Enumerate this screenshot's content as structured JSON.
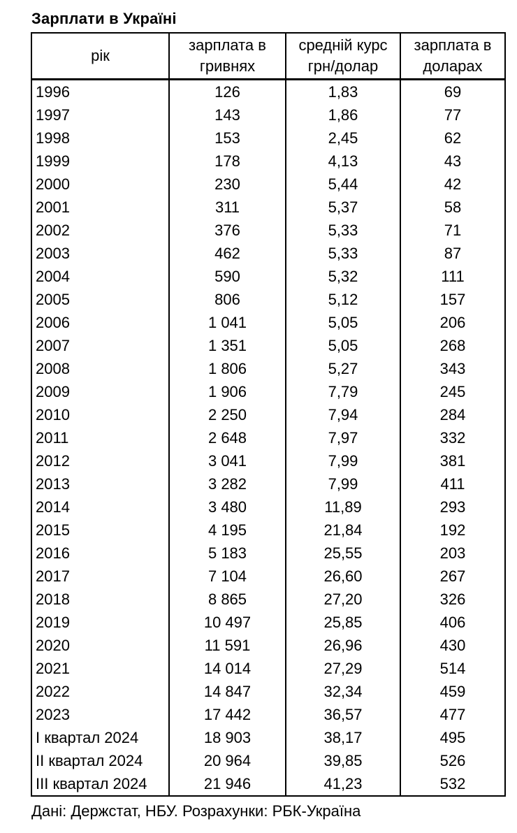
{
  "page": {
    "title": "Зарплати в Україні",
    "source_note": "Дані: Держстат, НБУ. Розрахунки: РБК-Україна"
  },
  "chart_data": {
    "type": "table",
    "title": "Зарплати в Україні",
    "columns": [
      "рік",
      "зарплата в гривнях",
      "средній курс грн/долар",
      "зарплата в доларах"
    ],
    "rows": [
      [
        "1996",
        "126",
        "1,83",
        "69"
      ],
      [
        "1997",
        "143",
        "1,86",
        "77"
      ],
      [
        "1998",
        "153",
        "2,45",
        "62"
      ],
      [
        "1999",
        "178",
        "4,13",
        "43"
      ],
      [
        "2000",
        "230",
        "5,44",
        "42"
      ],
      [
        "2001",
        "311",
        "5,37",
        "58"
      ],
      [
        "2002",
        "376",
        "5,33",
        "71"
      ],
      [
        "2003",
        "462",
        "5,33",
        "87"
      ],
      [
        "2004",
        "590",
        "5,32",
        "111"
      ],
      [
        "2005",
        "806",
        "5,12",
        "157"
      ],
      [
        "2006",
        "1 041",
        "5,05",
        "206"
      ],
      [
        "2007",
        "1 351",
        "5,05",
        "268"
      ],
      [
        "2008",
        "1 806",
        "5,27",
        "343"
      ],
      [
        "2009",
        "1 906",
        "7,79",
        "245"
      ],
      [
        "2010",
        "2 250",
        "7,94",
        "284"
      ],
      [
        "2011",
        "2 648",
        "7,97",
        "332"
      ],
      [
        "2012",
        "3 041",
        "7,99",
        "381"
      ],
      [
        "2013",
        "3 282",
        "7,99",
        "411"
      ],
      [
        "2014",
        "3 480",
        "11,89",
        "293"
      ],
      [
        "2015",
        "4 195",
        "21,84",
        "192"
      ],
      [
        "2016",
        "5 183",
        "25,55",
        "203"
      ],
      [
        "2017",
        "7 104",
        "26,60",
        "267"
      ],
      [
        "2018",
        "8 865",
        "27,20",
        "326"
      ],
      [
        "2019",
        "10 497",
        "25,85",
        "406"
      ],
      [
        "2020",
        "11 591",
        "26,96",
        "430"
      ],
      [
        "2021",
        "14 014",
        "27,29",
        "514"
      ],
      [
        "2022",
        "14 847",
        "32,34",
        "459"
      ],
      [
        "2023",
        "17 442",
        "36,57",
        "477"
      ],
      [
        "I квартал 2024",
        "18 903",
        "38,17",
        "495"
      ],
      [
        "II квартал 2024",
        "20 964",
        "39,85",
        "526"
      ],
      [
        "III квартал 2024",
        "21 946",
        "41,23",
        "532"
      ]
    ],
    "source": "Дані: Держстат, НБУ. Розрахунки: РБК-Україна",
    "layout": {
      "grid": "vertical-borders-only-in-body",
      "year_align": "left",
      "number_align": "center"
    },
    "colors": {
      "border": "#000000",
      "background": "#ffffff",
      "text": "#000000"
    }
  }
}
